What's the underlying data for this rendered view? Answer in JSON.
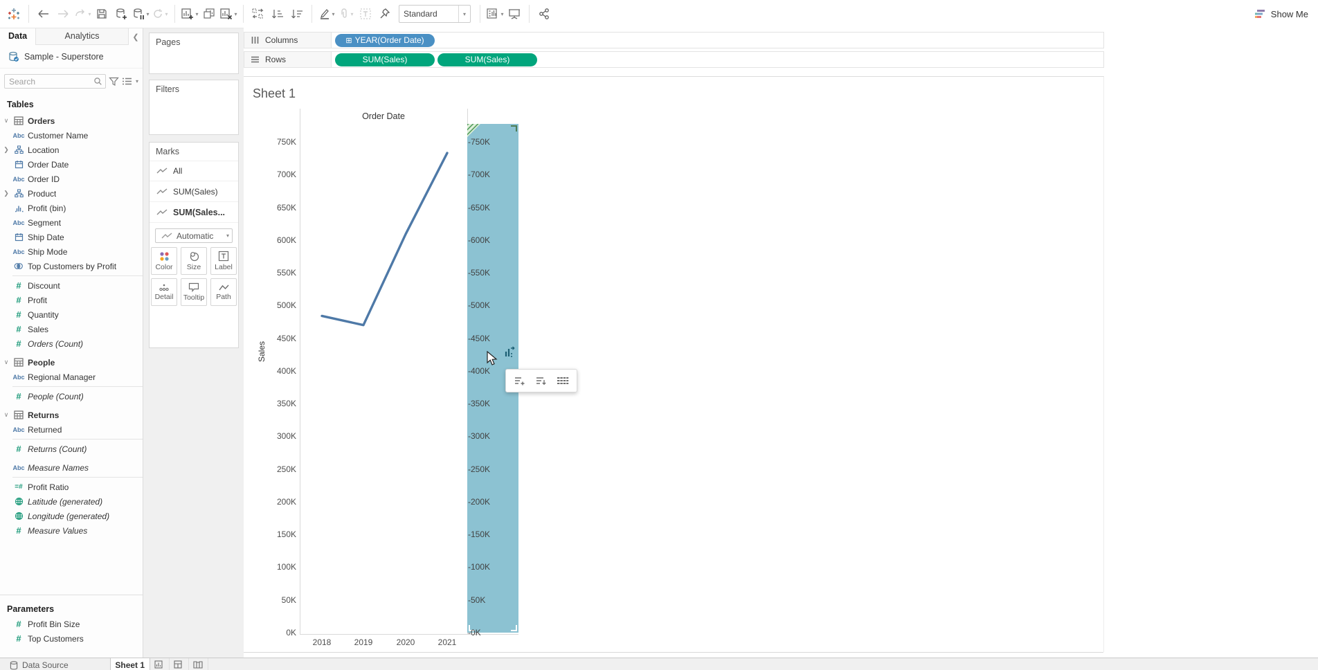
{
  "toolbar": {
    "fit_mode": "Standard",
    "show_me_label": "Show Me"
  },
  "data_pane": {
    "tabs": {
      "data": "Data",
      "analytics": "Analytics"
    },
    "data_source": "Sample - Superstore",
    "search_placeholder": "Search",
    "tables_label": "Tables",
    "rows": [
      {
        "type": "group",
        "icon": "table",
        "label": "Orders"
      },
      {
        "icon": "abc",
        "label": "Customer Name"
      },
      {
        "icon": "hier",
        "label": "Location",
        "chevron": true
      },
      {
        "icon": "date",
        "label": "Order Date"
      },
      {
        "icon": "abc",
        "label": "Order ID"
      },
      {
        "icon": "hier",
        "label": "Product",
        "chevron": true
      },
      {
        "icon": "bin",
        "label": "Profit (bin)"
      },
      {
        "icon": "abc",
        "label": "Segment"
      },
      {
        "icon": "date",
        "label": "Ship Date"
      },
      {
        "icon": "abc",
        "label": "Ship Mode"
      },
      {
        "icon": "set",
        "label": "Top Customers by Profit"
      },
      {
        "type": "sep"
      },
      {
        "icon": "num",
        "label": "Discount"
      },
      {
        "icon": "num",
        "label": "Profit"
      },
      {
        "icon": "num",
        "label": "Quantity"
      },
      {
        "icon": "num",
        "label": "Sales"
      },
      {
        "icon": "num",
        "label": "Orders (Count)",
        "italic": true
      },
      {
        "type": "gap"
      },
      {
        "type": "group",
        "icon": "table",
        "label": "People"
      },
      {
        "icon": "abc",
        "label": "Regional Manager"
      },
      {
        "type": "sep"
      },
      {
        "icon": "num",
        "label": "People (Count)",
        "italic": true
      },
      {
        "type": "gap"
      },
      {
        "type": "group",
        "icon": "table",
        "label": "Returns"
      },
      {
        "icon": "abc",
        "label": "Returned"
      },
      {
        "type": "sep"
      },
      {
        "icon": "num",
        "label": "Returns (Count)",
        "italic": true
      },
      {
        "type": "gap"
      },
      {
        "icon": "abc",
        "label": "Measure Names",
        "italic": true
      },
      {
        "type": "sep"
      },
      {
        "icon": "calc",
        "label": "Profit Ratio"
      },
      {
        "icon": "globe",
        "label": "Latitude (generated)",
        "italic": true
      },
      {
        "icon": "globe",
        "label": "Longitude (generated)",
        "italic": true
      },
      {
        "icon": "num",
        "label": "Measure Values",
        "italic": true
      }
    ],
    "parameters_label": "Parameters",
    "parameters": [
      {
        "icon": "num",
        "label": "Profit Bin Size"
      },
      {
        "icon": "num",
        "label": "Top Customers"
      }
    ]
  },
  "cards": {
    "pages_label": "Pages",
    "filters_label": "Filters",
    "marks": {
      "title": "Marks",
      "items": [
        {
          "label": "All",
          "selected": false
        },
        {
          "label": "SUM(Sales)",
          "selected": false
        },
        {
          "label": "SUM(Sales...",
          "selected": true
        }
      ],
      "mark_type": "Automatic",
      "buttons": [
        {
          "icon": "color",
          "label": "Color"
        },
        {
          "icon": "size",
          "label": "Size"
        },
        {
          "icon": "label",
          "label": "Label"
        },
        {
          "icon": "detail",
          "label": "Detail"
        },
        {
          "icon": "tooltip",
          "label": "Tooltip"
        },
        {
          "icon": "path",
          "label": "Path"
        }
      ]
    }
  },
  "shelves": {
    "columns_label": "Columns",
    "rows_label": "Rows",
    "columns_pills": [
      {
        "text": "YEAR(Order Date)",
        "color": "blue",
        "prefix": "expand"
      }
    ],
    "rows_pills": [
      {
        "text": "SUM(Sales)",
        "color": "green"
      },
      {
        "text": "SUM(Sales)",
        "color": "green"
      }
    ]
  },
  "sheet": {
    "title": "Sheet 1",
    "column_header": "Order Date",
    "y_axis_title": "Sales"
  },
  "chart_data": {
    "type": "line",
    "title": "Sheet 1",
    "xlabel": "Order Date",
    "ylabel": "Sales",
    "x": [
      "2018",
      "2019",
      "2020",
      "2021"
    ],
    "series": [
      {
        "name": "SUM(Sales)",
        "values": [
          484000,
          470000,
          609000,
          733000
        ]
      }
    ],
    "ylim": [
      0,
      750000
    ],
    "ytick_step": 50000,
    "ytick_labels_top_to_bottom": [
      "750K",
      "700K",
      "650K",
      "600K",
      "550K",
      "500K",
      "450K",
      "400K",
      "350K",
      "300K",
      "250K",
      "200K",
      "150K",
      "100K",
      "50K",
      "0K"
    ],
    "line_color": "#4E79A7",
    "highlight_band_color": "#8cc2d2",
    "legend": "none",
    "grid": "off"
  },
  "colors": {
    "pill_blue": "#4a90c4",
    "pill_green": "#01a57c",
    "dimension_blue": "#4e79a7",
    "measure_green": "#1f9b7b"
  },
  "bottom_bar": {
    "data_source_label": "Data Source",
    "sheet_tab": "Sheet 1"
  }
}
